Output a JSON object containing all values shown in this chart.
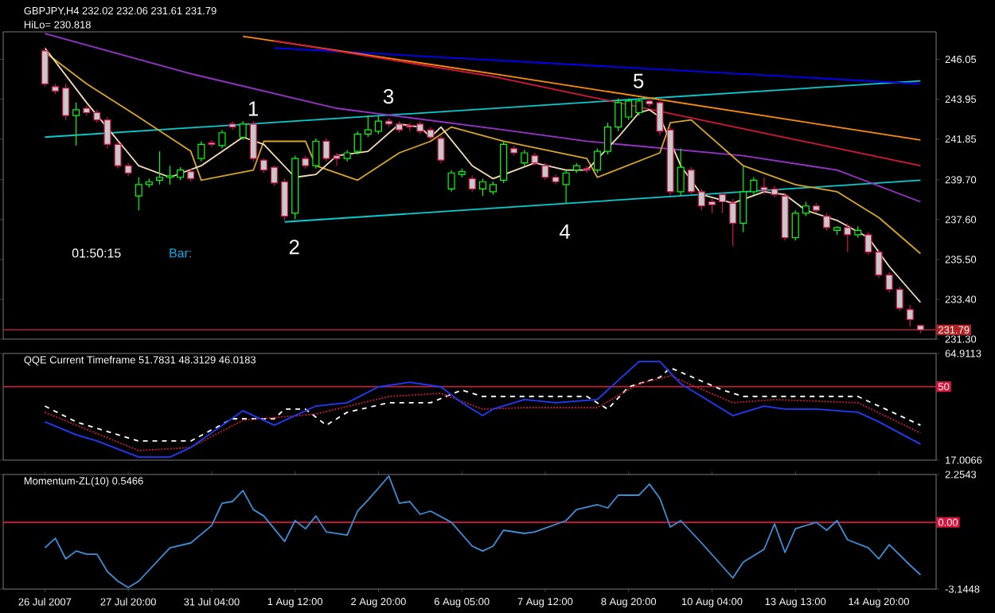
{
  "chart_data": [
    {
      "type": "candlestick",
      "title": "GBPJPY,H4  232.02 232.06 231.61 231.79",
      "subtitle": "HiLo= 230.818",
      "categories": [
        null,
        null,
        null,
        null,
        null,
        null,
        null,
        null,
        null,
        null,
        null,
        null,
        null,
        null,
        null,
        null,
        null,
        null,
        null,
        null,
        null,
        null,
        null,
        null,
        null,
        null,
        null,
        null,
        null,
        null,
        null,
        null,
        null,
        null,
        null,
        null,
        null,
        null,
        null,
        null,
        null,
        null,
        null,
        null,
        null,
        null,
        null,
        null,
        null,
        null,
        null,
        null,
        null,
        null,
        null,
        null,
        null,
        null,
        null,
        null,
        null,
        null,
        null,
        null,
        null,
        null,
        null,
        null,
        null,
        null,
        null,
        null,
        null,
        null,
        null,
        null,
        null,
        null,
        null,
        null,
        null,
        null,
        null,
        null,
        null
      ],
      "ohlc": [
        [
          246.5,
          246.65,
          244.61,
          244.76
        ],
        [
          244.61,
          244.76,
          244.23,
          244.38
        ],
        [
          244.53,
          244.76,
          242.86,
          243.09
        ],
        [
          243.09,
          243.77,
          241.5,
          243.39
        ],
        [
          243.47,
          243.62,
          243.09,
          243.24
        ],
        [
          243.24,
          243.39,
          242.71,
          242.86
        ],
        [
          242.86,
          243.01,
          241.35,
          241.57
        ],
        [
          241.57,
          241.73,
          240.29,
          240.44
        ],
        [
          240.44,
          240.59,
          239.91,
          240.06
        ],
        [
          238.85,
          239.83,
          238.09,
          239.45
        ],
        [
          239.45,
          239.76,
          239.3,
          239.6
        ],
        [
          239.68,
          241.2,
          239.45,
          239.83
        ],
        [
          239.83,
          240.44,
          239.45,
          239.91
        ],
        [
          239.83,
          240.36,
          239.68,
          240.21
        ],
        [
          240.13,
          240.29,
          239.6,
          239.76
        ],
        [
          240.82,
          241.73,
          240.67,
          241.57
        ],
        [
          241.65,
          241.8,
          241.42,
          241.57
        ],
        [
          241.5,
          242.33,
          241.35,
          242.18
        ],
        [
          242.64,
          242.79,
          242.33,
          242.48
        ],
        [
          241.95,
          242.79,
          241.8,
          242.64
        ],
        [
          242.64,
          242.79,
          240.67,
          240.82
        ],
        [
          240.74,
          240.82,
          240.06,
          240.21
        ],
        [
          240.36,
          240.44,
          239.38,
          239.53
        ],
        [
          239.6,
          239.76,
          237.56,
          237.78
        ],
        [
          237.94,
          240.97,
          237.63,
          240.82
        ],
        [
          240.82,
          240.97,
          240.29,
          240.44
        ],
        [
          240.44,
          241.88,
          240.29,
          241.73
        ],
        [
          241.73,
          241.88,
          240.67,
          240.82
        ],
        [
          240.97,
          241.12,
          240.44,
          240.82
        ],
        [
          240.82,
          241.27,
          240.67,
          241.12
        ],
        [
          241.2,
          242.26,
          241.04,
          242.11
        ],
        [
          242.11,
          243.09,
          241.95,
          242.33
        ],
        [
          242.26,
          243.09,
          242.11,
          242.79
        ],
        [
          242.79,
          242.94,
          242.48,
          242.64
        ],
        [
          242.64,
          242.79,
          242.18,
          242.33
        ],
        [
          242.56,
          242.71,
          242.26,
          242.48
        ],
        [
          242.64,
          242.79,
          242.11,
          242.26
        ],
        [
          242.33,
          242.48,
          241.8,
          241.95
        ],
        [
          241.88,
          242.03,
          240.59,
          240.74
        ],
        [
          239.22,
          240.21,
          239.07,
          240.06
        ],
        [
          239.98,
          240.29,
          239.83,
          240.13
        ],
        [
          239.76,
          239.91,
          239.07,
          239.22
        ],
        [
          239.22,
          239.76,
          238.85,
          239.6
        ],
        [
          239.07,
          239.6,
          238.92,
          239.45
        ],
        [
          239.68,
          241.73,
          239.53,
          241.57
        ],
        [
          241.35,
          241.5,
          240.97,
          241.12
        ],
        [
          240.59,
          241.27,
          240.44,
          241.12
        ],
        [
          240.97,
          241.12,
          240.44,
          240.59
        ],
        [
          240.44,
          240.59,
          239.68,
          239.83
        ],
        [
          239.83,
          239.98,
          239.45,
          239.6
        ],
        [
          239.45,
          240.21,
          238.47,
          240.06
        ],
        [
          240.21,
          240.59,
          240.06,
          240.44
        ],
        [
          240.29,
          240.44,
          240.06,
          240.21
        ],
        [
          240.21,
          241.35,
          240.06,
          241.2
        ],
        [
          241.2,
          242.71,
          241.04,
          242.48
        ],
        [
          242.48,
          244.0,
          242.26,
          243.77
        ],
        [
          243.01,
          244.0,
          242.86,
          243.85
        ],
        [
          243.24,
          244.0,
          243.09,
          243.85
        ],
        [
          243.85,
          244.0,
          243.55,
          243.7
        ],
        [
          243.77,
          244.0,
          242.03,
          242.26
        ],
        [
          242.33,
          242.48,
          238.85,
          239.07
        ],
        [
          239.07,
          241.35,
          238.85,
          240.36
        ],
        [
          240.21,
          240.36,
          238.92,
          239.07
        ],
        [
          239.07,
          239.22,
          238.09,
          238.32
        ],
        [
          238.54,
          238.69,
          237.94,
          238.39
        ],
        [
          238.92,
          239.07,
          237.94,
          238.54
        ],
        [
          238.47,
          238.69,
          236.19,
          237.41
        ],
        [
          237.41,
          240.44,
          236.95,
          239.07
        ],
        [
          239.07,
          239.83,
          238.92,
          239.68
        ],
        [
          239.3,
          239.83,
          238.92,
          239.15
        ],
        [
          239.22,
          239.38,
          238.77,
          238.92
        ],
        [
          238.85,
          239.0,
          236.5,
          236.65
        ],
        [
          236.65,
          238.09,
          236.5,
          237.94
        ],
        [
          237.94,
          238.54,
          237.78,
          238.32
        ],
        [
          238.32,
          238.47,
          237.94,
          238.09
        ],
        [
          237.78,
          237.94,
          237.03,
          237.18
        ],
        [
          237.03,
          237.25,
          236.8,
          237.18
        ],
        [
          237.18,
          237.41,
          235.89,
          236.8
        ],
        [
          236.8,
          237.25,
          236.65,
          237.03
        ],
        [
          236.8,
          236.95,
          235.74,
          235.89
        ],
        [
          235.89,
          236.04,
          234.53,
          234.68
        ],
        [
          234.68,
          234.83,
          233.77,
          233.92
        ],
        [
          233.92,
          234.07,
          232.78,
          232.93
        ],
        [
          232.86,
          233.09,
          231.95,
          232.33
        ],
        [
          232.02,
          232.06,
          231.61,
          231.79
        ]
      ],
      "series": [
        {
          "type": "line",
          "color": "#00ced1",
          "values": [
            241.95,
            null,
            null,
            null,
            null,
            null,
            null,
            null,
            null,
            null,
            null,
            null,
            null,
            null,
            null,
            null,
            null,
            null,
            null,
            null,
            null,
            null,
            null,
            null,
            null,
            null,
            null,
            null,
            null,
            null,
            null,
            null,
            null,
            null,
            null,
            null,
            null,
            null,
            null,
            null,
            null,
            null,
            null,
            null,
            null,
            null,
            null,
            null,
            null,
            null,
            null,
            null,
            null,
            null,
            null,
            null,
            null,
            null,
            null,
            null,
            null,
            null,
            null,
            null,
            null,
            null,
            null,
            null,
            null,
            null,
            null,
            null,
            null,
            null,
            null,
            null,
            null,
            null,
            null,
            null,
            null,
            null,
            null,
            null,
            244.91
          ]
        },
        {
          "type": "line",
          "color": "#00ced1",
          "values": [
            null,
            null,
            null,
            null,
            null,
            null,
            null,
            null,
            null,
            null,
            null,
            null,
            null,
            null,
            null,
            null,
            null,
            null,
            null,
            null,
            null,
            null,
            null,
            237.48,
            null,
            null,
            null,
            null,
            null,
            null,
            null,
            null,
            null,
            null,
            null,
            null,
            null,
            null,
            null,
            null,
            null,
            null,
            null,
            null,
            null,
            null,
            null,
            null,
            null,
            null,
            null,
            null,
            null,
            null,
            null,
            null,
            null,
            null,
            null,
            null,
            null,
            null,
            null,
            null,
            null,
            null,
            null,
            null,
            null,
            null,
            null,
            null,
            null,
            null,
            null,
            null,
            null,
            null,
            null,
            null,
            null,
            null,
            null,
            null,
            239.68
          ]
        },
        {
          "type": "line",
          "color": "#0000ff",
          "values": [
            null,
            null,
            null,
            null,
            null,
            null,
            null,
            null,
            null,
            null,
            null,
            null,
            null,
            null,
            null,
            null,
            null,
            null,
            null,
            null,
            null,
            null,
            246.65,
            null,
            null,
            null,
            null,
            null,
            null,
            null,
            null,
            null,
            null,
            null,
            null,
            null,
            null,
            null,
            null,
            null,
            null,
            null,
            null,
            null,
            null,
            null,
            null,
            null,
            null,
            null,
            null,
            null,
            null,
            null,
            null,
            null,
            null,
            null,
            null,
            null,
            null,
            null,
            null,
            null,
            null,
            null,
            null,
            null,
            null,
            null,
            null,
            null,
            null,
            null,
            null,
            null,
            null,
            null,
            null,
            null,
            null,
            null,
            null,
            null,
            244.76
          ]
        },
        {
          "type": "line",
          "color": "#ff8c00",
          "values": [
            null,
            null,
            null,
            null,
            null,
            null,
            null,
            null,
            null,
            null,
            null,
            null,
            null,
            null,
            null,
            null,
            null,
            null,
            null,
            247.26,
            null,
            null,
            null,
            null,
            null,
            null,
            null,
            null,
            null,
            null,
            null,
            null,
            null,
            null,
            null,
            null,
            null,
            null,
            null,
            null,
            null,
            null,
            null,
            245.29,
            null,
            null,
            null,
            null,
            null,
            null,
            null,
            null,
            null,
            null,
            null,
            null,
            null,
            null,
            null,
            null,
            null,
            null,
            null,
            null,
            null,
            null,
            null,
            null,
            null,
            null,
            null,
            null,
            null,
            null,
            null,
            null,
            null,
            null,
            null,
            null,
            null,
            null,
            null,
            null,
            241.8
          ]
        },
        {
          "type": "line",
          "color": "#dc143c",
          "values": [
            null,
            null,
            null,
            null,
            null,
            null,
            null,
            null,
            null,
            null,
            null,
            null,
            null,
            null,
            null,
            null,
            null,
            null,
            null,
            null,
            null,
            null,
            247.03,
            null,
            null,
            null,
            null,
            null,
            null,
            null,
            null,
            null,
            null,
            null,
            null,
            null,
            null,
            null,
            null,
            null,
            null,
            null,
            null,
            245.14,
            null,
            null,
            null,
            null,
            null,
            null,
            null,
            null,
            null,
            null,
            null,
            null,
            null,
            null,
            null,
            null,
            null,
            null,
            null,
            null,
            null,
            null,
            null,
            null,
            null,
            null,
            null,
            null,
            null,
            null,
            null,
            null,
            null,
            null,
            null,
            null,
            null,
            null,
            null,
            null,
            240.44
          ]
        },
        {
          "type": "line",
          "color": "#9932cc",
          "values": [
            247.41,
            null,
            null,
            null,
            null,
            null,
            null,
            null,
            null,
            null,
            null,
            null,
            null,
            null,
            245.29,
            null,
            null,
            null,
            null,
            null,
            null,
            null,
            null,
            null,
            null,
            null,
            null,
            null,
            243.47,
            null,
            null,
            null,
            null,
            null,
            null,
            null,
            null,
            null,
            null,
            null,
            null,
            null,
            null,
            null,
            242.33,
            null,
            null,
            null,
            null,
            null,
            null,
            null,
            241.73,
            null,
            null,
            null,
            null,
            null,
            null,
            null,
            null,
            null,
            null,
            null,
            null,
            null,
            null,
            240.97,
            null,
            null,
            null,
            null,
            null,
            null,
            null,
            null,
            240.21,
            null,
            null,
            null,
            null,
            null,
            null,
            null,
            238.54
          ]
        },
        {
          "type": "line",
          "color": "#daa520",
          "values": [
            246.43,
            null,
            null,
            null,
            244.76,
            null,
            null,
            null,
            null,
            243.01,
            null,
            null,
            null,
            null,
            241.2,
            239.68,
            null,
            null,
            null,
            null,
            240.21,
            241.73,
            null,
            null,
            null,
            241.73,
            240.44,
            null,
            null,
            null,
            239.68,
            null,
            null,
            null,
            241.12,
            null,
            null,
            241.73,
            null,
            242.48,
            null,
            null,
            null,
            null,
            241.73,
            null,
            null,
            null,
            null,
            null,
            null,
            null,
            240.82,
            239.83,
            null,
            null,
            null,
            null,
            null,
            241.12,
            242.71,
            null,
            242.86,
            null,
            null,
            null,
            null,
            240.44,
            null,
            null,
            null,
            null,
            239.45,
            null,
            null,
            null,
            239.07,
            null,
            null,
            null,
            237.71,
            null,
            null,
            null,
            235.81
          ]
        },
        {
          "type": "line",
          "color": "#f5deb3",
          "values": [
            246.65,
            null,
            null,
            null,
            243.77,
            null,
            null,
            null,
            null,
            240.44,
            null,
            null,
            239.83,
            null,
            null,
            240.44,
            null,
            null,
            null,
            241.95,
            null,
            241.57,
            null,
            null,
            239.83,
            null,
            239.98,
            null,
            240.97,
            null,
            null,
            241.2,
            null,
            null,
            242.64,
            null,
            242.48,
            241.95,
            242.48,
            null,
            null,
            240.44,
            null,
            239.76,
            null,
            null,
            null,
            240.59,
            null,
            null,
            240.21,
            null,
            240.21,
            null,
            null,
            241.95,
            null,
            243.24,
            243.39,
            243.01,
            null,
            240.44,
            null,
            238.92,
            null,
            null,
            238.47,
            null,
            null,
            239.07,
            null,
            238.92,
            null,
            238.09,
            null,
            null,
            237.56,
            null,
            null,
            236.65,
            null,
            235.13,
            null,
            null,
            233.24
          ]
        }
      ],
      "ylim": [
        231.3,
        247.5
      ],
      "yticks": [
        246.05,
        243.95,
        241.85,
        {
          "value": 239.7,
          "label": "239.70"
        },
        {
          "value": 237.6,
          "label": "237.60"
        },
        {
          "value": 235.5,
          "label": "235.50"
        },
        {
          "value": 233.4,
          "label": "233.40"
        },
        {
          "value": 231.3,
          "label": "231.30"
        }
      ],
      "tick_labels": "y",
      "ref_lines": [
        {
          "axis": "y",
          "value": 231.79,
          "label": "231.79",
          "color": "#b22222"
        }
      ],
      "annotations": [
        "1",
        "2",
        "3",
        "4",
        "5",
        "01:50:15",
        "Bar:"
      ]
    },
    {
      "type": "line",
      "title": "QQE Current Timeframe 51.7831 48.3129 46.0183",
      "categories": [
        null,
        null,
        null,
        null,
        null,
        null,
        null,
        null,
        null,
        null,
        null,
        null,
        null,
        null,
        null,
        null,
        null,
        null,
        null,
        null,
        null,
        null,
        null,
        null,
        null,
        null,
        null,
        null,
        null,
        null,
        null,
        null,
        null,
        null,
        null,
        null,
        null,
        null,
        null,
        null,
        null,
        null,
        null,
        null,
        null,
        null,
        null,
        null,
        null,
        null,
        null,
        null,
        null,
        null,
        null,
        null,
        null,
        null,
        null,
        null,
        null,
        null,
        null,
        null,
        null,
        null,
        null,
        null,
        null,
        null,
        null,
        null,
        null,
        null,
        null,
        null,
        null,
        null,
        null,
        null,
        null,
        null,
        null,
        null,
        null
      ],
      "series": [
        {
          "color": "#ffffff",
          "line_style": "dashed",
          "values": [
            41.3,
            null,
            null,
            34.2,
            null,
            null,
            null,
            null,
            null,
            25.6,
            null,
            null,
            null,
            null,
            25.6,
            null,
            null,
            null,
            35.6,
            null,
            null,
            null,
            35.6,
            39.9,
            null,
            39.9,
            null,
            32.7,
            null,
            38.5,
            null,
            null,
            null,
            42.8,
            null,
            null,
            null,
            42.8,
            null,
            null,
            48.5,
            null,
            45.6,
            null,
            null,
            null,
            45.6,
            null,
            null,
            null,
            null,
            null,
            45.6,
            null,
            39.9,
            null,
            49.9,
            null,
            null,
            54.2,
            58.5,
            null,
            null,
            null,
            null,
            48.5,
            null,
            45.6,
            null,
            null,
            null,
            null,
            null,
            null,
            null,
            null,
            null,
            null,
            45.6,
            null,
            null,
            null,
            null,
            null,
            32.7
          ]
        },
        {
          "color": "#dc143c",
          "line_style": "dotted",
          "values": [
            38.5,
            null,
            null,
            null,
            null,
            null,
            null,
            null,
            null,
            21.3,
            null,
            null,
            null,
            null,
            22.7,
            null,
            null,
            null,
            null,
            34.9,
            null,
            null,
            null,
            null,
            null,
            null,
            37.7,
            null,
            null,
            null,
            null,
            null,
            null,
            45.6,
            null,
            null,
            null,
            null,
            47.0,
            null,
            null,
            null,
            39.9,
            null,
            null,
            null,
            40.6,
            null,
            null,
            null,
            null,
            null,
            null,
            40.6,
            null,
            null,
            null,
            51.3,
            null,
            null,
            54.9,
            null,
            null,
            null,
            null,
            null,
            42.8,
            null,
            null,
            null,
            44.2,
            null,
            null,
            null,
            null,
            null,
            null,
            null,
            42.8,
            null,
            null,
            null,
            null,
            null,
            29.2
          ]
        },
        {
          "color": "#1e3cff",
          "line_style": "solid",
          "values": [
            34.2,
            null,
            null,
            28.4,
            null,
            25.6,
            null,
            null,
            null,
            18.4,
            null,
            null,
            18.4,
            null,
            22.7,
            null,
            null,
            null,
            null,
            39.2,
            null,
            null,
            32.7,
            null,
            null,
            null,
            41.3,
            null,
            null,
            42.8,
            null,
            null,
            49.9,
            null,
            null,
            52.0,
            null,
            null,
            49.9,
            null,
            42.8,
            null,
            37.0,
            39.9,
            null,
            null,
            44.2,
            null,
            null,
            42.8,
            null,
            null,
            null,
            44.2,
            null,
            52.8,
            null,
            61.3,
            null,
            61.3,
            null,
            51.3,
            null,
            45.6,
            null,
            null,
            37.0,
            null,
            null,
            41.3,
            null,
            39.9,
            null,
            null,
            39.9,
            null,
            null,
            null,
            38.5,
            null,
            34.2,
            null,
            null,
            null,
            24.2
          ]
        }
      ],
      "ylim": [
        17.0066,
        64.9113
      ],
      "yticks": [
        64.9113,
        17.0066
      ],
      "tick_labels": "y",
      "ref_lines": [
        {
          "axis": "y",
          "value": 50,
          "label": "50",
          "color": "#dc143c"
        }
      ]
    },
    {
      "type": "line",
      "title": "Momentum-ZL(10) 0.5466",
      "categories": [
        "26 Jul 2007",
        null,
        null,
        null,
        null,
        null,
        null,
        null,
        "27 Jul 20:00",
        null,
        null,
        null,
        null,
        null,
        null,
        null,
        "31 Jul 04:00",
        null,
        null,
        null,
        null,
        null,
        null,
        null,
        "1 Aug 12:00",
        null,
        null,
        null,
        null,
        null,
        null,
        null,
        "2 Aug 20:00",
        null,
        null,
        null,
        null,
        null,
        null,
        null,
        "6 Aug 05:00",
        null,
        null,
        null,
        null,
        null,
        null,
        null,
        "7 Aug 12:00",
        null,
        null,
        null,
        null,
        null,
        null,
        null,
        "8 Aug 20:00",
        null,
        null,
        null,
        null,
        null,
        null,
        null,
        "10 Aug 04:00",
        null,
        null,
        null,
        null,
        null,
        null,
        null,
        "13 Aug 13:00",
        null,
        null,
        null,
        null,
        null,
        null,
        null,
        "14 Aug 20:00",
        null,
        null,
        null,
        null
      ],
      "series": [
        {
          "color": "#3a8fd8",
          "values": [
            -1.2,
            -0.75,
            -1.72,
            -1.35,
            -1.5,
            -1.5,
            -2.32,
            -2.77,
            -3.07,
            -2.77,
            null,
            null,
            -1.2,
            null,
            -0.97,
            null,
            -0.15,
            0.9,
            0.98,
            1.5,
            0.6,
            0.3,
            null,
            -0.9,
            0.08,
            -0.3,
            0.3,
            -0.45,
            null,
            -0.6,
            0.53,
            1.05,
            null,
            2.18,
            0.9,
            0.98,
            0.38,
            0.53,
            null,
            0.0,
            null,
            -1.12,
            -1.35,
            -1.12,
            -0.37,
            null,
            -0.52,
            -0.45,
            null,
            null,
            0.08,
            0.6,
            null,
            0.83,
            0.68,
            1.28,
            null,
            1.28,
            1.8,
            1.13,
            -0.22,
            0.08,
            null,
            -0.97,
            null,
            null,
            -2.62,
            -1.87,
            null,
            -1.27,
            -0.07,
            -1.42,
            -0.3,
            null,
            0.0,
            -0.37,
            0.08,
            -0.82,
            null,
            -1.2,
            -1.72,
            -1.05,
            null,
            -2.02,
            -2.47
          ]
        }
      ],
      "ylim": [
        -3.1448,
        2.2543
      ],
      "yticks": [
        2.2543,
        -3.1448
      ],
      "ref_lines": [
        {
          "axis": "y",
          "value": 0,
          "label": "0.00",
          "color": "#dc143c"
        }
      ]
    }
  ]
}
